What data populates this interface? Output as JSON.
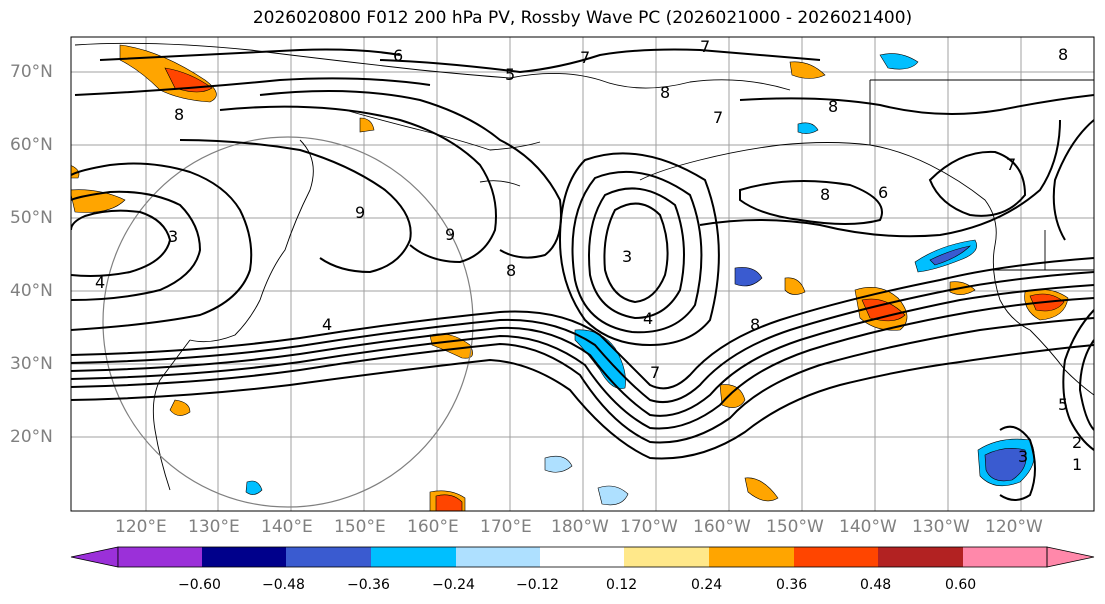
{
  "title": "2026020800 F012 200 hPa PV, Rossby Wave PC (2026021000 - 2026021400)",
  "latitude_labels": [
    "70°N",
    "60°N",
    "50°N",
    "40°N",
    "30°N",
    "20°N"
  ],
  "longitude_labels": [
    "120°E",
    "130°E",
    "140°E",
    "150°E",
    "160°E",
    "170°E",
    "180°W",
    "170°W",
    "160°W",
    "150°W",
    "140°W",
    "130°W",
    "120°W"
  ],
  "contour_labels": [
    "6",
    "7",
    "8",
    "5",
    "8",
    "7",
    "8",
    "8",
    "9",
    "9",
    "8",
    "3",
    "4",
    "7",
    "8",
    "6",
    "4",
    "7",
    "8",
    "3",
    "4",
    "7",
    "5",
    "2",
    "1",
    "3"
  ],
  "colorbar": {
    "ticks": [
      "−0.60",
      "−0.48",
      "−0.36",
      "−0.24",
      "−0.12",
      "0.12",
      "0.24",
      "0.36",
      "0.48",
      "0.60"
    ],
    "colors": [
      "#9b30d9",
      "#00008b",
      "#3a5bd0",
      "#00bfff",
      "#aee0ff",
      "#ffffff",
      "#ffe88a",
      "#ffa500",
      "#ff4500",
      "#b22222",
      "#ff88aa"
    ]
  },
  "colors": {
    "grid": "#a0a0a0",
    "contour": "#000000",
    "axis_text": "#808080",
    "circle": "#808080"
  }
}
